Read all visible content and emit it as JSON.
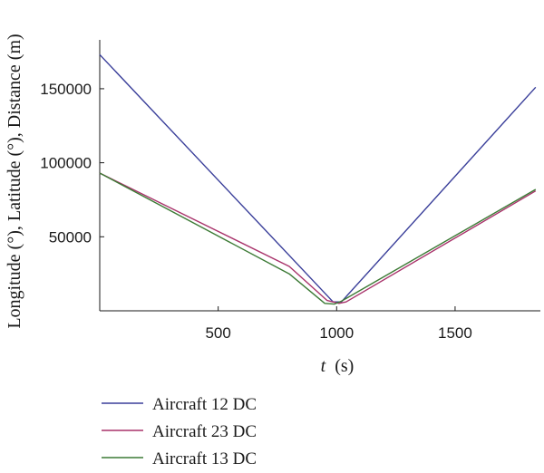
{
  "chart_data": {
    "type": "line",
    "xlabel": "t",
    "xlabel_unit": "(s)",
    "ylabel": "Longitude (°), Latitude  (°), Distance (m)",
    "xlim": [
      0,
      1860
    ],
    "ylim": [
      0,
      183000
    ],
    "x_ticks": [
      500,
      1000,
      1500
    ],
    "y_ticks": [
      50000,
      100000,
      150000
    ],
    "x_tick_labels": [
      "500",
      "1000",
      "1500"
    ],
    "y_tick_labels": [
      "50000",
      "100000",
      "150000"
    ],
    "legend_position": "bottom",
    "series": [
      {
        "name": "Aircraft 12 DC",
        "color": "#3a3f9a",
        "x": [
          0,
          985,
          1020,
          1840
        ],
        "y": [
          173000,
          6000,
          6000,
          151000
        ]
      },
      {
        "name": "Aircraft 23 DC",
        "color": "#a8326a",
        "x": [
          0,
          800,
          960,
          1010,
          1040,
          1840
        ],
        "y": [
          93000,
          30000,
          7000,
          5000,
          6000,
          81000
        ]
      },
      {
        "name": "Aircraft 13 DC",
        "color": "#3c7a35",
        "x": [
          0,
          800,
          950,
          990,
          1020,
          1840
        ],
        "y": [
          93000,
          25000,
          5000,
          4500,
          6500,
          82000
        ]
      }
    ]
  }
}
